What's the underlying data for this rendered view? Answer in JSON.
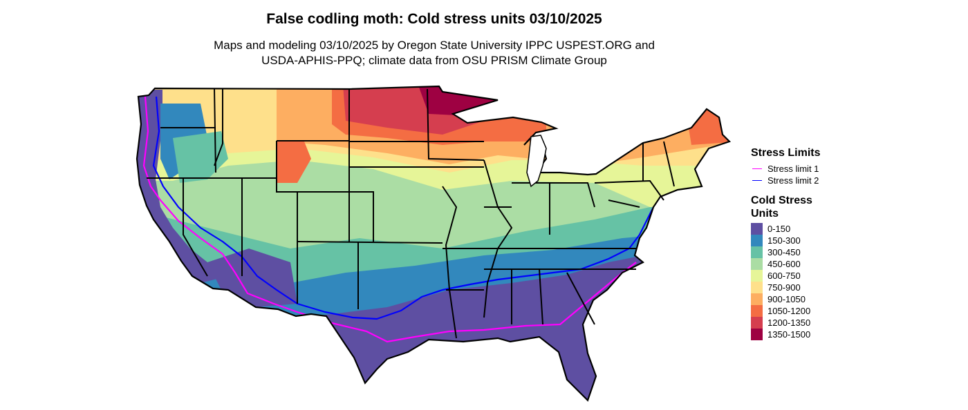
{
  "title": "False codling moth: Cold stress units 03/10/2025",
  "subtitle_line1": "Maps and modeling 03/10/2025 by Oregon State University IPPC USPEST.ORG and",
  "subtitle_line2": "USDA-APHIS-PPQ; climate data from OSU PRISM Climate Group",
  "legend": {
    "limits_title": "Stress Limits",
    "limits": [
      {
        "label": "Stress limit 1",
        "color": "#ff00ff"
      },
      {
        "label": "Stress limit 2",
        "color": "#0000ff"
      }
    ],
    "units_title": "Cold Stress\nUnits",
    "classes": [
      {
        "label": "0-150",
        "color": "#5e4fa2"
      },
      {
        "label": "150-300",
        "color": "#3288bd"
      },
      {
        "label": "300-450",
        "color": "#66c2a5"
      },
      {
        "label": "450-600",
        "color": "#abdda4"
      },
      {
        "label": "600-750",
        "color": "#e6f598"
      },
      {
        "label": "750-900",
        "color": "#fee08b"
      },
      {
        "label": "900-1050",
        "color": "#fdae61"
      },
      {
        "label": "1050-1200",
        "color": "#f46d43"
      },
      {
        "label": "1200-1350",
        "color": "#d53e4f"
      },
      {
        "label": "1350-1500",
        "color": "#9e0142"
      }
    ]
  }
}
